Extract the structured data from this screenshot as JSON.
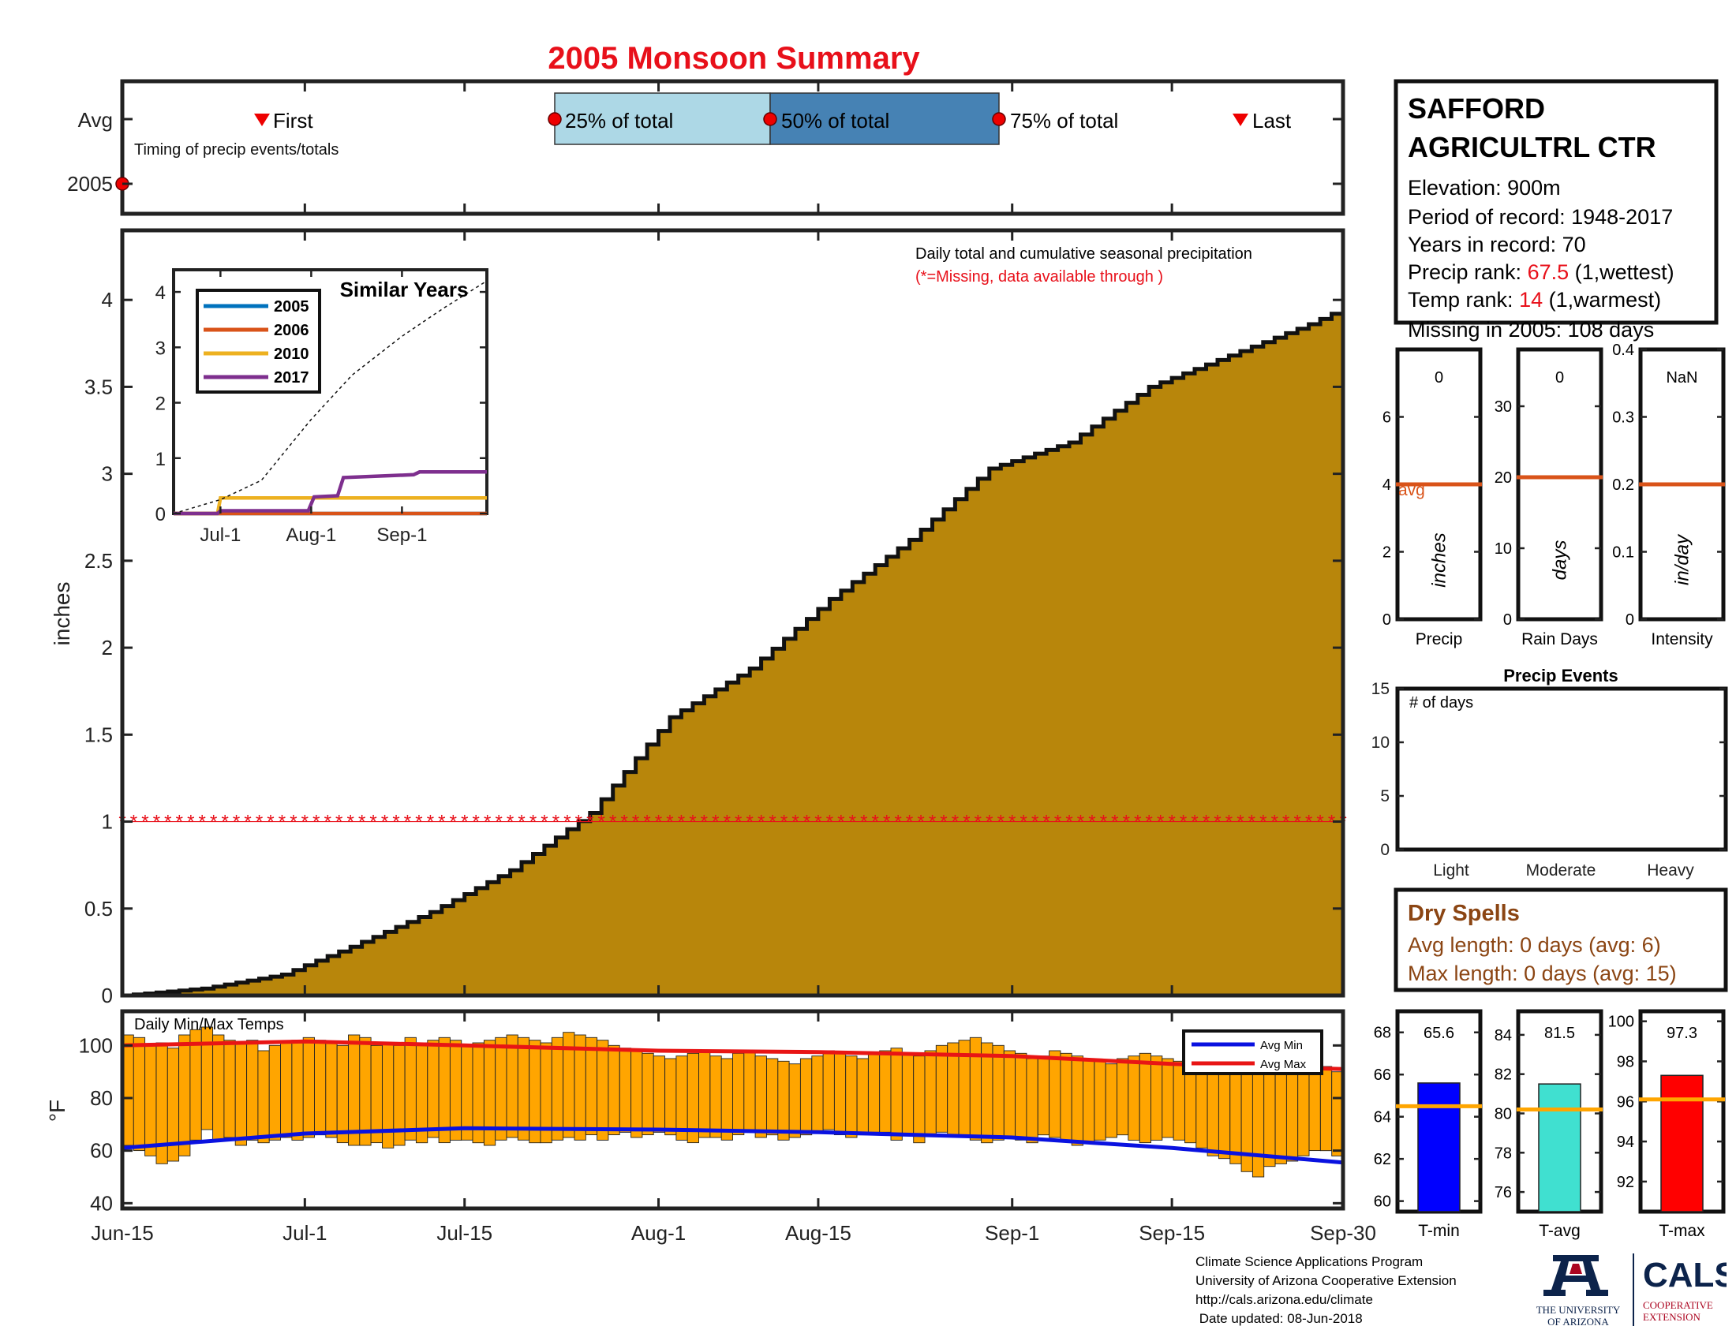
{
  "title": "2005 Monsoon Summary",
  "timing": {
    "row_labels": [
      "Avg",
      "2005"
    ],
    "caption": "Timing of precip events/totals",
    "markers": [
      "First",
      "25% of total",
      "50% of total",
      "75% of total",
      "Last"
    ]
  },
  "station": {
    "name_line1": "SAFFORD",
    "name_line2": "AGRICULTRL CTR",
    "elevation": "Elevation: 900m",
    "period": "Period of record: 1948-2017",
    "years": "Years in record: 70",
    "precip_rank_label": "Precip rank: ",
    "precip_rank_value": "67.5",
    "precip_rank_note": " (1,wettest)",
    "temp_rank_label": "Temp rank: ",
    "temp_rank_value": "14",
    "temp_rank_note": " (1,warmest)",
    "missing": "Missing in 2005: 108 days"
  },
  "main": {
    "caption": "Daily total and cumulative seasonal precipitation",
    "missing_note": "(*=Missing, data available through )",
    "ylabel": "inches",
    "x_ticks": [
      "Jun-15",
      "Jul-1",
      "Jul-15",
      "Aug-1",
      "Aug-15",
      "Sep-1",
      "Sep-15",
      "Sep-30"
    ],
    "y_ticks": [
      "0",
      "0.5",
      "1",
      "1.5",
      "2",
      "2.5",
      "3",
      "3.5",
      "4"
    ]
  },
  "inset": {
    "title": "Similar Years",
    "legend": [
      "2005",
      "2006",
      "2010",
      "2017"
    ],
    "x_ticks": [
      "Jul-1",
      "Aug-1",
      "Sep-1"
    ],
    "y_ticks": [
      "0",
      "1",
      "2",
      "3",
      "4"
    ]
  },
  "temps": {
    "caption": "Daily Min/Max Temps",
    "ylabel": "°F",
    "legend": [
      "Avg Min",
      "Avg Max"
    ],
    "y_ticks": [
      "40",
      "60",
      "80",
      "100"
    ]
  },
  "mini_bars": [
    {
      "label": "Precip",
      "unit": "inches",
      "value_text": "0",
      "ticks": [
        "0",
        "2",
        "4",
        "6"
      ],
      "avg_text": "avg"
    },
    {
      "label": "Rain Days",
      "unit": "days",
      "value_text": "0",
      "ticks": [
        "0",
        "10",
        "20",
        "30"
      ]
    },
    {
      "label": "Intensity",
      "unit": "in/day",
      "value_text": "NaN",
      "ticks": [
        "0",
        "0.1",
        "0.2",
        "0.3",
        "0.4"
      ]
    }
  ],
  "precip_events": {
    "title": "Precip Events",
    "note": "# of days",
    "categories": [
      "Light",
      "Moderate",
      "Heavy"
    ],
    "ticks": [
      "0",
      "5",
      "10",
      "15"
    ]
  },
  "dry_spells": {
    "title": "Dry Spells",
    "avg_line": "Avg length: 0 days (avg: 6)",
    "max_line": "Max length: 0 days (avg: 15)"
  },
  "temp_bars": [
    {
      "label": "T-min",
      "value_text": "65.6",
      "ticks": [
        "60",
        "62",
        "64",
        "66",
        "68"
      ]
    },
    {
      "label": "T-avg",
      "value_text": "81.5",
      "ticks": [
        "76",
        "78",
        "80",
        "82",
        "84"
      ]
    },
    {
      "label": "T-max",
      "value_text": "97.3",
      "ticks": [
        "92",
        "94",
        "96",
        "98",
        "100"
      ]
    }
  ],
  "footer": [
    "Climate Science Applications Program",
    "University of Arizona Cooperative Extension",
    "http://cals.arizona.edu/climate",
    " Date updated: 08-Jun-2018"
  ],
  "logos": {
    "ua_line1": "THE UNIVERSITY",
    "ua_line2": "OF ARIZONA",
    "cals": "CALS",
    "cals_line1": "COOPERATIVE",
    "cals_line2": "EXTENSION"
  },
  "colors": {
    "title": "#e8101a",
    "fill": "#b8860b",
    "temp_bar": "#ffa500",
    "avg_min": "#0a12e0",
    "avg_max": "#e81515",
    "light_blue": "#add8e6",
    "steel_blue": "#4682b4",
    "orange_line": "#d95319",
    "tmin_bar": "#0000ff",
    "tavg_bar": "#40e0d0",
    "tmax_bar": "#ff0000",
    "ua_navy": "#0c234b",
    "ua_red": "#ab0520"
  },
  "chart_data": [
    {
      "type": "area",
      "title": "",
      "xlabel": "",
      "ylabel": "inches",
      "x_range": [
        "2005-06-15",
        "2005-09-30"
      ],
      "ylim": [
        0,
        4.4
      ],
      "series": [
        {
          "name": "",
          "x": [
            "2005-06-15",
            "2005-06-22",
            "2005-06-29",
            "2005-07-05",
            "2005-07-12",
            "2005-07-19",
            "2005-07-26",
            "2005-08-02",
            "2005-08-09",
            "2005-08-16",
            "2005-08-23",
            "2005-08-30",
            "2005-09-06",
            "2005-09-13",
            "2005-09-20",
            "2005-09-27",
            "2005-09-30"
          ],
          "y": [
            0.0,
            0.04,
            0.12,
            0.28,
            0.48,
            0.72,
            1.05,
            1.6,
            1.88,
            2.28,
            2.62,
            3.03,
            3.18,
            3.5,
            3.68,
            3.86,
            3.95
          ]
        }
      ],
      "missing_marker_level": 1.0
    },
    {
      "type": "line",
      "title": "Similar Years",
      "x_ticks": [
        "Jul-1",
        "Aug-1",
        "Sep-1"
      ],
      "x_range": [
        "2005-06-15",
        "2005-09-30"
      ],
      "ylim": [
        0,
        4
      ],
      "series": [
        {
          "name": "2005",
          "x": [
            "2005-06-15",
            "2005-09-30"
          ],
          "y": [
            0,
            0
          ]
        },
        {
          "name": "2006",
          "x": [
            "2005-06-15",
            "2005-09-30"
          ],
          "y": [
            0,
            0
          ]
        },
        {
          "name": "2010",
          "x": [
            "2005-06-15",
            "2005-06-30",
            "2005-07-01",
            "2005-09-30"
          ],
          "y": [
            0,
            0,
            0.28,
            0.28
          ]
        },
        {
          "name": "2017",
          "x": [
            "2005-06-15",
            "2005-06-30",
            "2005-07-01",
            "2005-07-31",
            "2005-08-02",
            "2005-08-10",
            "2005-08-12",
            "2005-09-05",
            "2005-09-07",
            "2005-09-30"
          ],
          "y": [
            0,
            0,
            0.05,
            0.05,
            0.3,
            0.32,
            0.65,
            0.7,
            0.75,
            0.75
          ]
        },
        {
          "name": "",
          "style": "dashed",
          "x": [
            "2005-06-15",
            "2005-07-01",
            "2005-07-15",
            "2005-08-01",
            "2005-08-15",
            "2005-09-01",
            "2005-09-15",
            "2005-09-30"
          ],
          "y": [
            0,
            0.25,
            0.6,
            1.7,
            2.5,
            3.2,
            3.7,
            4.2
          ]
        }
      ]
    },
    {
      "type": "bar",
      "title": "Daily Min/Max Temps",
      "ylabel": "°F",
      "ylim": [
        38,
        113
      ],
      "x_range": [
        "2005-06-15",
        "2005-09-30"
      ],
      "daily_min": [
        62,
        60,
        58,
        55,
        56,
        58,
        64,
        68,
        64,
        65,
        62,
        64,
        63,
        64,
        65,
        64,
        65,
        66,
        65,
        63,
        62,
        62,
        63,
        61,
        62,
        64,
        63,
        65,
        63,
        64,
        64,
        63,
        62,
        64,
        65,
        64,
        63,
        63,
        64,
        65,
        64,
        66,
        64,
        66,
        67,
        65,
        66,
        67,
        66,
        64,
        63,
        65,
        65,
        64,
        66,
        67,
        65,
        66,
        64,
        65,
        66,
        67,
        68,
        66,
        65,
        66,
        67,
        67,
        64,
        66,
        63,
        66,
        67,
        66,
        65,
        64,
        63,
        64,
        65,
        64,
        63,
        66,
        65,
        64,
        62,
        63,
        64,
        65,
        66,
        64,
        63,
        64,
        65,
        64,
        63,
        61,
        58,
        57,
        55,
        52,
        50,
        54,
        55,
        56,
        58,
        60,
        60,
        58
      ],
      "daily_max": [
        104,
        103,
        100,
        101,
        99,
        104,
        106,
        107,
        104,
        102,
        101,
        102,
        98,
        100,
        101,
        102,
        103,
        102,
        101,
        100,
        104,
        103,
        100,
        101,
        100,
        103,
        101,
        102,
        103,
        102,
        100,
        101,
        102,
        103,
        104,
        103,
        102,
        101,
        103,
        105,
        104,
        103,
        102,
        100,
        99,
        98,
        97,
        96,
        95,
        96,
        97,
        98,
        96,
        95,
        97,
        98,
        96,
        95,
        94,
        93,
        95,
        96,
        98,
        97,
        96,
        95,
        97,
        98,
        99,
        97,
        96,
        98,
        100,
        101,
        102,
        103,
        101,
        100,
        98,
        97,
        95,
        96,
        98,
        97,
        96,
        95,
        94,
        93,
        95,
        96,
        97,
        96,
        95,
        94,
        93,
        92,
        94,
        96,
        95,
        97,
        94,
        95,
        96,
        97,
        95,
        91,
        92,
        90
      ],
      "avg_min": {
        "x": [
          "2005-06-15",
          "2005-07-01",
          "2005-07-15",
          "2005-08-01",
          "2005-08-15",
          "2005-09-01",
          "2005-09-15",
          "2005-09-30"
        ],
        "y": [
          61,
          66.5,
          68.5,
          68,
          67,
          65,
          61,
          55.5
        ]
      },
      "avg_max": {
        "x": [
          "2005-06-15",
          "2005-07-01",
          "2005-07-15",
          "2005-08-01",
          "2005-08-15",
          "2005-09-01",
          "2005-09-15",
          "2005-09-30"
        ],
        "y": [
          100,
          101.5,
          100,
          98,
          97.5,
          96,
          93,
          91
        ]
      }
    },
    {
      "type": "bar",
      "title": "",
      "categories": [
        "Precip",
        "Rain Days",
        "Intensity"
      ],
      "values": [
        0,
        0,
        null
      ],
      "averages": [
        4,
        20,
        0.2
      ],
      "ylims": [
        [
          0,
          8
        ],
        [
          0,
          38
        ],
        [
          0,
          0.4
        ]
      ]
    },
    {
      "type": "bar",
      "title": "Precip Events",
      "categories": [
        "Light",
        "Moderate",
        "Heavy"
      ],
      "values": [
        0,
        0,
        0
      ],
      "ylim": [
        0,
        15
      ]
    },
    {
      "type": "bar",
      "title": "",
      "categories": [
        "T-min",
        "T-avg",
        "T-max"
      ],
      "values": [
        65.6,
        81.5,
        97.3
      ],
      "averages": [
        64.5,
        80.2,
        96.1
      ],
      "ylims": [
        [
          59.5,
          69
        ],
        [
          75,
          85.2
        ],
        [
          90.5,
          100.5
        ]
      ]
    }
  ]
}
